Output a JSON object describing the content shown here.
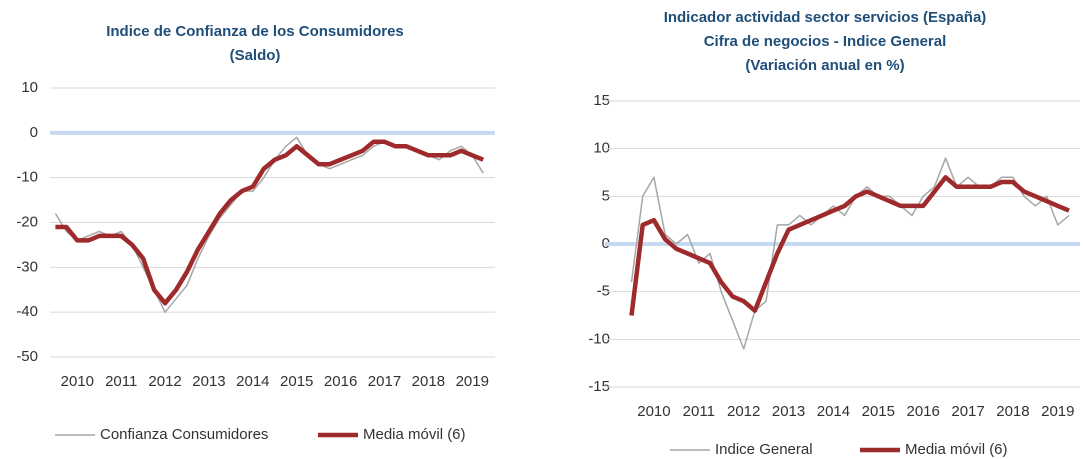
{
  "chart_data": [
    {
      "type": "line",
      "title": [
        "Indice de Confianza de los Consumidores",
        "(Saldo)"
      ],
      "x": [
        2010,
        2010.25,
        2010.5,
        2010.75,
        2011,
        2011.25,
        2011.5,
        2011.75,
        2012,
        2012.25,
        2012.5,
        2012.75,
        2013,
        2013.25,
        2013.5,
        2013.75,
        2014,
        2014.25,
        2014.5,
        2014.75,
        2015,
        2015.25,
        2015.5,
        2015.75,
        2016,
        2016.25,
        2016.5,
        2016.75,
        2017,
        2017.25,
        2017.5,
        2017.75,
        2018,
        2018.25,
        2018.5,
        2018.75,
        2019,
        2019.25,
        2019.5,
        2019.75
      ],
      "series": [
        {
          "name": "Confianza Consumidores",
          "color": "#a6a6a6",
          "values": [
            -18,
            -22,
            -24,
            -23,
            -22,
            -23,
            -22,
            -25,
            -30,
            -35,
            -40,
            -37,
            -34,
            -28,
            -23,
            -19,
            -16,
            -13,
            -13,
            -10,
            -6,
            -3,
            -1,
            -5,
            -7,
            -8,
            -7,
            -6,
            -5,
            -3,
            -2,
            -3,
            -3,
            -4,
            -5,
            -6,
            -4,
            -3,
            -5,
            -9
          ]
        },
        {
          "name": "Media móvil (6)",
          "color": "#9e2a2b",
          "values": [
            -21,
            -21,
            -24,
            -24,
            -23,
            -23,
            -23,
            -25,
            -28,
            -35,
            -38,
            -35,
            -31,
            -26,
            -22,
            -18,
            -15,
            -13,
            -12,
            -8,
            -6,
            -5,
            -3,
            -5,
            -7,
            -7,
            -6,
            -5,
            -4,
            -2,
            -2,
            -3,
            -3,
            -4,
            -5,
            -5,
            -5,
            -4,
            -5,
            -6
          ]
        }
      ],
      "xlim": [
        2009.9,
        2019.95
      ],
      "xticks": [
        {
          "value": 2010.5,
          "label": "2010"
        },
        {
          "value": 2011.5,
          "label": "2011"
        },
        {
          "value": 2012.5,
          "label": "2012"
        },
        {
          "value": 2013.5,
          "label": "2013"
        },
        {
          "value": 2014.5,
          "label": "2014"
        },
        {
          "value": 2015.5,
          "label": "2015"
        },
        {
          "value": 2016.5,
          "label": "2016"
        },
        {
          "value": 2017.5,
          "label": "2017"
        },
        {
          "value": 2018.5,
          "label": "2018"
        },
        {
          "value": 2019.5,
          "label": "2019"
        }
      ],
      "ylim": [
        -50,
        10
      ],
      "yticks": [
        -50,
        -40,
        -30,
        -20,
        -10,
        0,
        10
      ],
      "grid": true,
      "zero_line_color": "#c5d9f1",
      "legend": "bottom"
    },
    {
      "type": "line",
      "title": [
        "Indicador actividad sector servicios (España)",
        "Cifra de negocios - Indice General",
        "(Variación anual en %)"
      ],
      "x": [
        2010,
        2010.25,
        2010.5,
        2010.75,
        2011,
        2011.25,
        2011.5,
        2011.75,
        2012,
        2012.25,
        2012.5,
        2012.75,
        2013,
        2013.25,
        2013.5,
        2013.75,
        2014,
        2014.25,
        2014.5,
        2014.75,
        2015,
        2015.25,
        2015.5,
        2015.75,
        2016,
        2016.25,
        2016.5,
        2016.75,
        2017,
        2017.25,
        2017.5,
        2017.75,
        2018,
        2018.25,
        2018.5,
        2018.75,
        2019,
        2019.25,
        2019.5,
        2019.75
      ],
      "series": [
        {
          "name": "Indice General",
          "color": "#a6a6a6",
          "values": [
            -4,
            5,
            7,
            1,
            0,
            1,
            -2,
            -1,
            -5,
            -8,
            -11,
            -7,
            -6,
            2,
            2,
            3,
            2,
            3,
            4,
            3,
            5,
            6,
            5,
            5,
            4,
            3,
            5,
            6,
            9,
            6,
            7,
            6,
            6,
            7,
            7,
            5,
            4,
            5,
            2,
            3
          ]
        },
        {
          "name": "Media móvil (6)",
          "color": "#9e2a2b",
          "values": [
            -7.5,
            2,
            2.5,
            0.5,
            -0.5,
            -1,
            -1.5,
            -2,
            -4,
            -5.5,
            -6,
            -7,
            -4,
            -1,
            1.5,
            2,
            2.5,
            3,
            3.5,
            4,
            5,
            5.5,
            5,
            4.5,
            4,
            4,
            4,
            5.5,
            7,
            6,
            6,
            6,
            6,
            6.5,
            6.5,
            5.5,
            5,
            4.5,
            4,
            3.5
          ]
        }
      ],
      "xlim": [
        2009.9,
        2019.95
      ],
      "xticks": [
        {
          "value": 2010.5,
          "label": "2010"
        },
        {
          "value": 2011.5,
          "label": "2011"
        },
        {
          "value": 2012.5,
          "label": "2012"
        },
        {
          "value": 2013.5,
          "label": "2013"
        },
        {
          "value": 2014.5,
          "label": "2014"
        },
        {
          "value": 2015.5,
          "label": "2015"
        },
        {
          "value": 2016.5,
          "label": "2016"
        },
        {
          "value": 2017.5,
          "label": "2017"
        },
        {
          "value": 2018.5,
          "label": "2018"
        },
        {
          "value": 2019.5,
          "label": "2019"
        }
      ],
      "ylim": [
        -15,
        15
      ],
      "yticks": [
        -15,
        -10,
        -5,
        0,
        5,
        10,
        15
      ],
      "grid": true,
      "zero_line_color": "#c5d9f1",
      "legend": "bottom"
    }
  ]
}
